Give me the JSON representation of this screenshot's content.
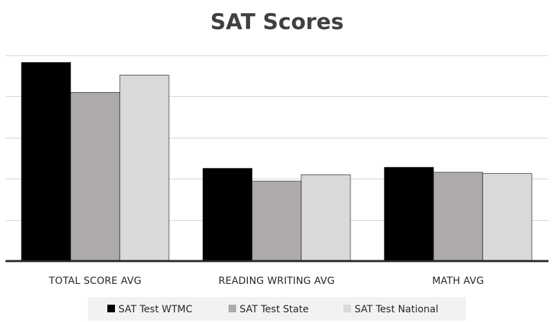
{
  "chart_data": {
    "type": "bar",
    "title": "SAT Scores",
    "xlabel": "",
    "ylabel": "",
    "categories": [
      "TOTAL SCORE AVG",
      "READING WRITING AVG",
      "MATH AVG"
    ],
    "series": [
      {
        "name": "SAT Test WTMC",
        "values": [
          1159,
          541,
          547
        ],
        "color": "#000000"
      },
      {
        "name": "SAT Test State",
        "values": [
          984,
          466,
          518
        ],
        "color": "#aeaaaa"
      },
      {
        "name": "SAT Test National",
        "values": [
          1085,
          504,
          511
        ],
        "color": "#d9d9d9"
      }
    ],
    "ylim": [
      0,
      1200
    ],
    "grid": true,
    "y_tick_labels_shown": false,
    "legend_position": "bottom"
  }
}
